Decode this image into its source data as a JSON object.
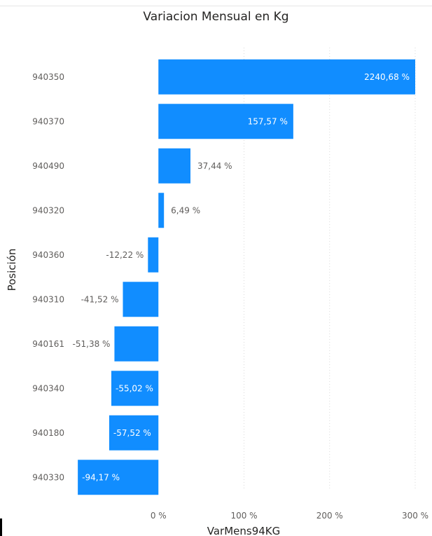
{
  "chart_data": {
    "type": "bar",
    "orientation": "horizontal",
    "title": "Variacion Mensual en Kg",
    "xlabel": "VarMens94KG",
    "ylabel": "Posición",
    "categories": [
      "940350",
      "940370",
      "940490",
      "940320",
      "940360",
      "940310",
      "940161",
      "940340",
      "940180",
      "940330"
    ],
    "values": [
      2240.68,
      157.57,
      37.44,
      6.49,
      -12.22,
      -41.52,
      -51.38,
      -55.02,
      -57.52,
      -94.17
    ],
    "data_labels": [
      "2240,68 %",
      "157,57 %",
      "37,44 %",
      "6,49 %",
      "-12,22 %",
      "-41,52 %",
      "-51,38 %",
      "-55,02 %",
      "-57,52 %",
      "-94,17 %"
    ],
    "xlim": [
      -100,
      300
    ],
    "xticks": [
      0,
      100,
      200,
      300
    ],
    "xtick_labels": [
      "0 %",
      "100 %",
      "200 %",
      "300 %"
    ],
    "grid": true,
    "legend": "none",
    "bar_color": "#118dff",
    "clipped_values_at_axis_max": true
  }
}
